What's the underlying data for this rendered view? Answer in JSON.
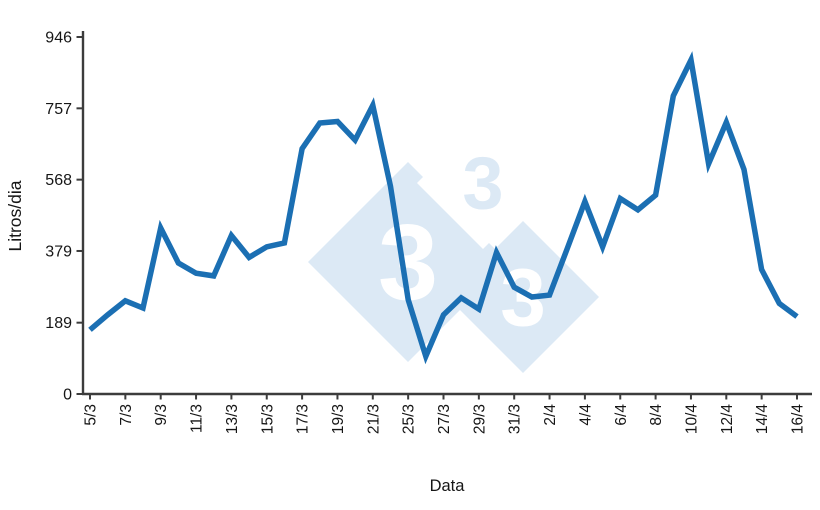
{
  "chart_data": {
    "type": "line",
    "title": "",
    "xlabel": "Data",
    "ylabel": "Litros/dia",
    "x": [
      "5/3",
      "6/3",
      "7/3",
      "8/3",
      "9/3",
      "10/3",
      "11/3",
      "12/3",
      "13/3",
      "14/3",
      "15/3",
      "16/3",
      "17/3",
      "18/3",
      "19/3",
      "20/3",
      "21/3",
      "24/3",
      "25/3",
      "26/3",
      "27/3",
      "28/3",
      "29/3",
      "30/3",
      "31/3",
      "1/4",
      "2/4",
      "3/4",
      "4/4",
      "5/4",
      "6/4",
      "7/4",
      "8/4",
      "9/4",
      "10/4",
      "11/4",
      "12/4",
      "13/4",
      "14/4",
      "15/4",
      "16/4"
    ],
    "values": [
      170,
      210,
      247,
      228,
      440,
      347,
      320,
      313,
      420,
      362,
      390,
      400,
      650,
      718,
      722,
      673,
      765,
      550,
      250,
      100,
      210,
      255,
      225,
      375,
      283,
      257,
      262,
      385,
      510,
      390,
      518,
      488,
      527,
      790,
      885,
      610,
      720,
      595,
      330,
      240,
      205
    ],
    "x_tick_labels": [
      "5/3",
      "7/3",
      "9/3",
      "11/3",
      "13/3",
      "15/3",
      "17/3",
      "19/3",
      "21/3",
      "25/3",
      "27/3",
      "29/3",
      "31/3",
      "2/4",
      "4/4",
      "6/4",
      "8/4",
      "10/4",
      "12/4",
      "14/4",
      "16/4"
    ],
    "y_ticks": [
      0,
      189,
      379,
      568,
      757,
      946
    ],
    "ylim": [
      0,
      946
    ],
    "grid": false,
    "legend": "none",
    "line_color": "#1b6fb3",
    "axis_color": "#3c3c3c",
    "watermark": {
      "text": "3",
      "color": "#dce9f5"
    }
  }
}
